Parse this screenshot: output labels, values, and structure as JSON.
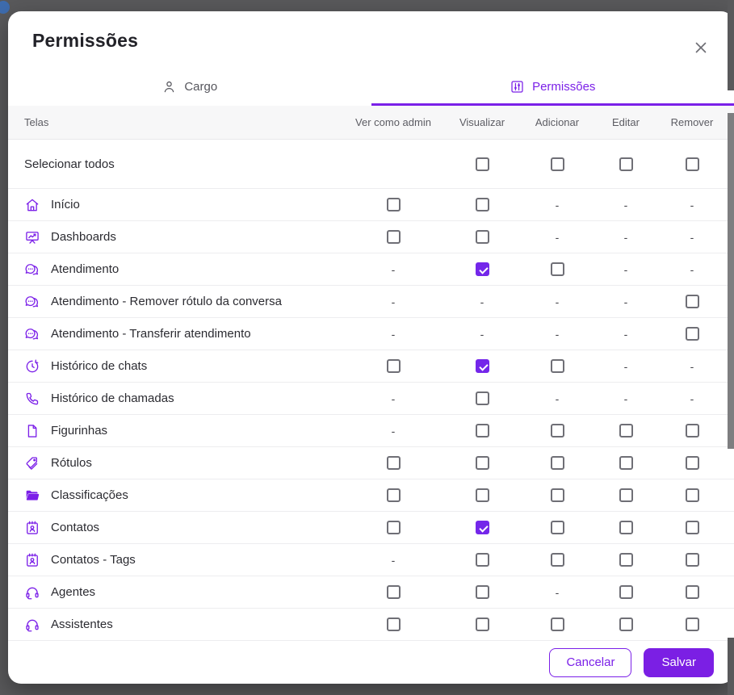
{
  "modal": {
    "title": "Permissões",
    "tabs": [
      {
        "label": "Cargo",
        "icon": "person-icon",
        "active": false
      },
      {
        "label": "Permissões",
        "icon": "sliders-icon",
        "active": true
      }
    ],
    "table": {
      "columns": [
        "Telas",
        "Ver como admin",
        "Visualizar",
        "Adicionar",
        "Editar",
        "Remover"
      ],
      "rows": [
        {
          "icon": null,
          "label": "Selecionar todos",
          "tall": true,
          "cells": [
            "empty",
            "unchecked",
            "unchecked",
            "unchecked",
            "unchecked"
          ]
        },
        {
          "icon": "home-icon",
          "label": "Início",
          "cells": [
            "unchecked",
            "unchecked",
            "dash",
            "dash",
            "dash"
          ]
        },
        {
          "icon": "dashboard-icon",
          "label": "Dashboards",
          "cells": [
            "unchecked",
            "unchecked",
            "dash",
            "dash",
            "dash"
          ]
        },
        {
          "icon": "chat-icon",
          "label": "Atendimento",
          "cells": [
            "dash",
            "checked",
            "unchecked",
            "dash",
            "dash"
          ]
        },
        {
          "icon": "chat-icon",
          "label": "Atendimento - Remover rótulo da conversa",
          "cells": [
            "dash",
            "dash",
            "dash",
            "dash",
            "unchecked"
          ]
        },
        {
          "icon": "chat-icon",
          "label": "Atendimento - Transferir atendimento",
          "cells": [
            "dash",
            "dash",
            "dash",
            "dash",
            "unchecked"
          ]
        },
        {
          "icon": "history-icon",
          "label": "Histórico de chats",
          "cells": [
            "unchecked",
            "checked",
            "unchecked",
            "dash",
            "dash"
          ]
        },
        {
          "icon": "phone-icon",
          "label": "Histórico de chamadas",
          "cells": [
            "dash",
            "unchecked",
            "dash",
            "dash",
            "dash"
          ]
        },
        {
          "icon": "file-icon",
          "label": "Figurinhas",
          "cells": [
            "dash",
            "unchecked",
            "unchecked",
            "unchecked",
            "unchecked"
          ]
        },
        {
          "icon": "tag-icon",
          "label": "Rótulos",
          "cells": [
            "unchecked",
            "unchecked",
            "unchecked",
            "unchecked",
            "unchecked"
          ]
        },
        {
          "icon": "folder-icon",
          "label": "Classificações",
          "cells": [
            "unchecked",
            "unchecked",
            "unchecked",
            "unchecked",
            "unchecked"
          ]
        },
        {
          "icon": "contacts-icon",
          "label": "Contatos",
          "cells": [
            "unchecked",
            "checked",
            "unchecked",
            "unchecked",
            "unchecked"
          ]
        },
        {
          "icon": "contacts-icon",
          "label": "Contatos - Tags",
          "cells": [
            "dash",
            "unchecked",
            "unchecked",
            "unchecked",
            "unchecked"
          ]
        },
        {
          "icon": "headset-icon",
          "label": "Agentes",
          "cells": [
            "unchecked",
            "unchecked",
            "dash",
            "unchecked",
            "unchecked"
          ]
        },
        {
          "icon": "headset-icon",
          "label": "Assistentes",
          "cells": [
            "unchecked",
            "unchecked",
            "unchecked",
            "unchecked",
            "unchecked"
          ]
        }
      ]
    },
    "footer": {
      "cancel_label": "Cancelar",
      "save_label": "Salvar"
    },
    "colors": {
      "accent": "#7b20e8",
      "checked_checkbox": "#7427ea",
      "overlay": "#59595b",
      "header_bg": "#f7f7f8"
    }
  }
}
